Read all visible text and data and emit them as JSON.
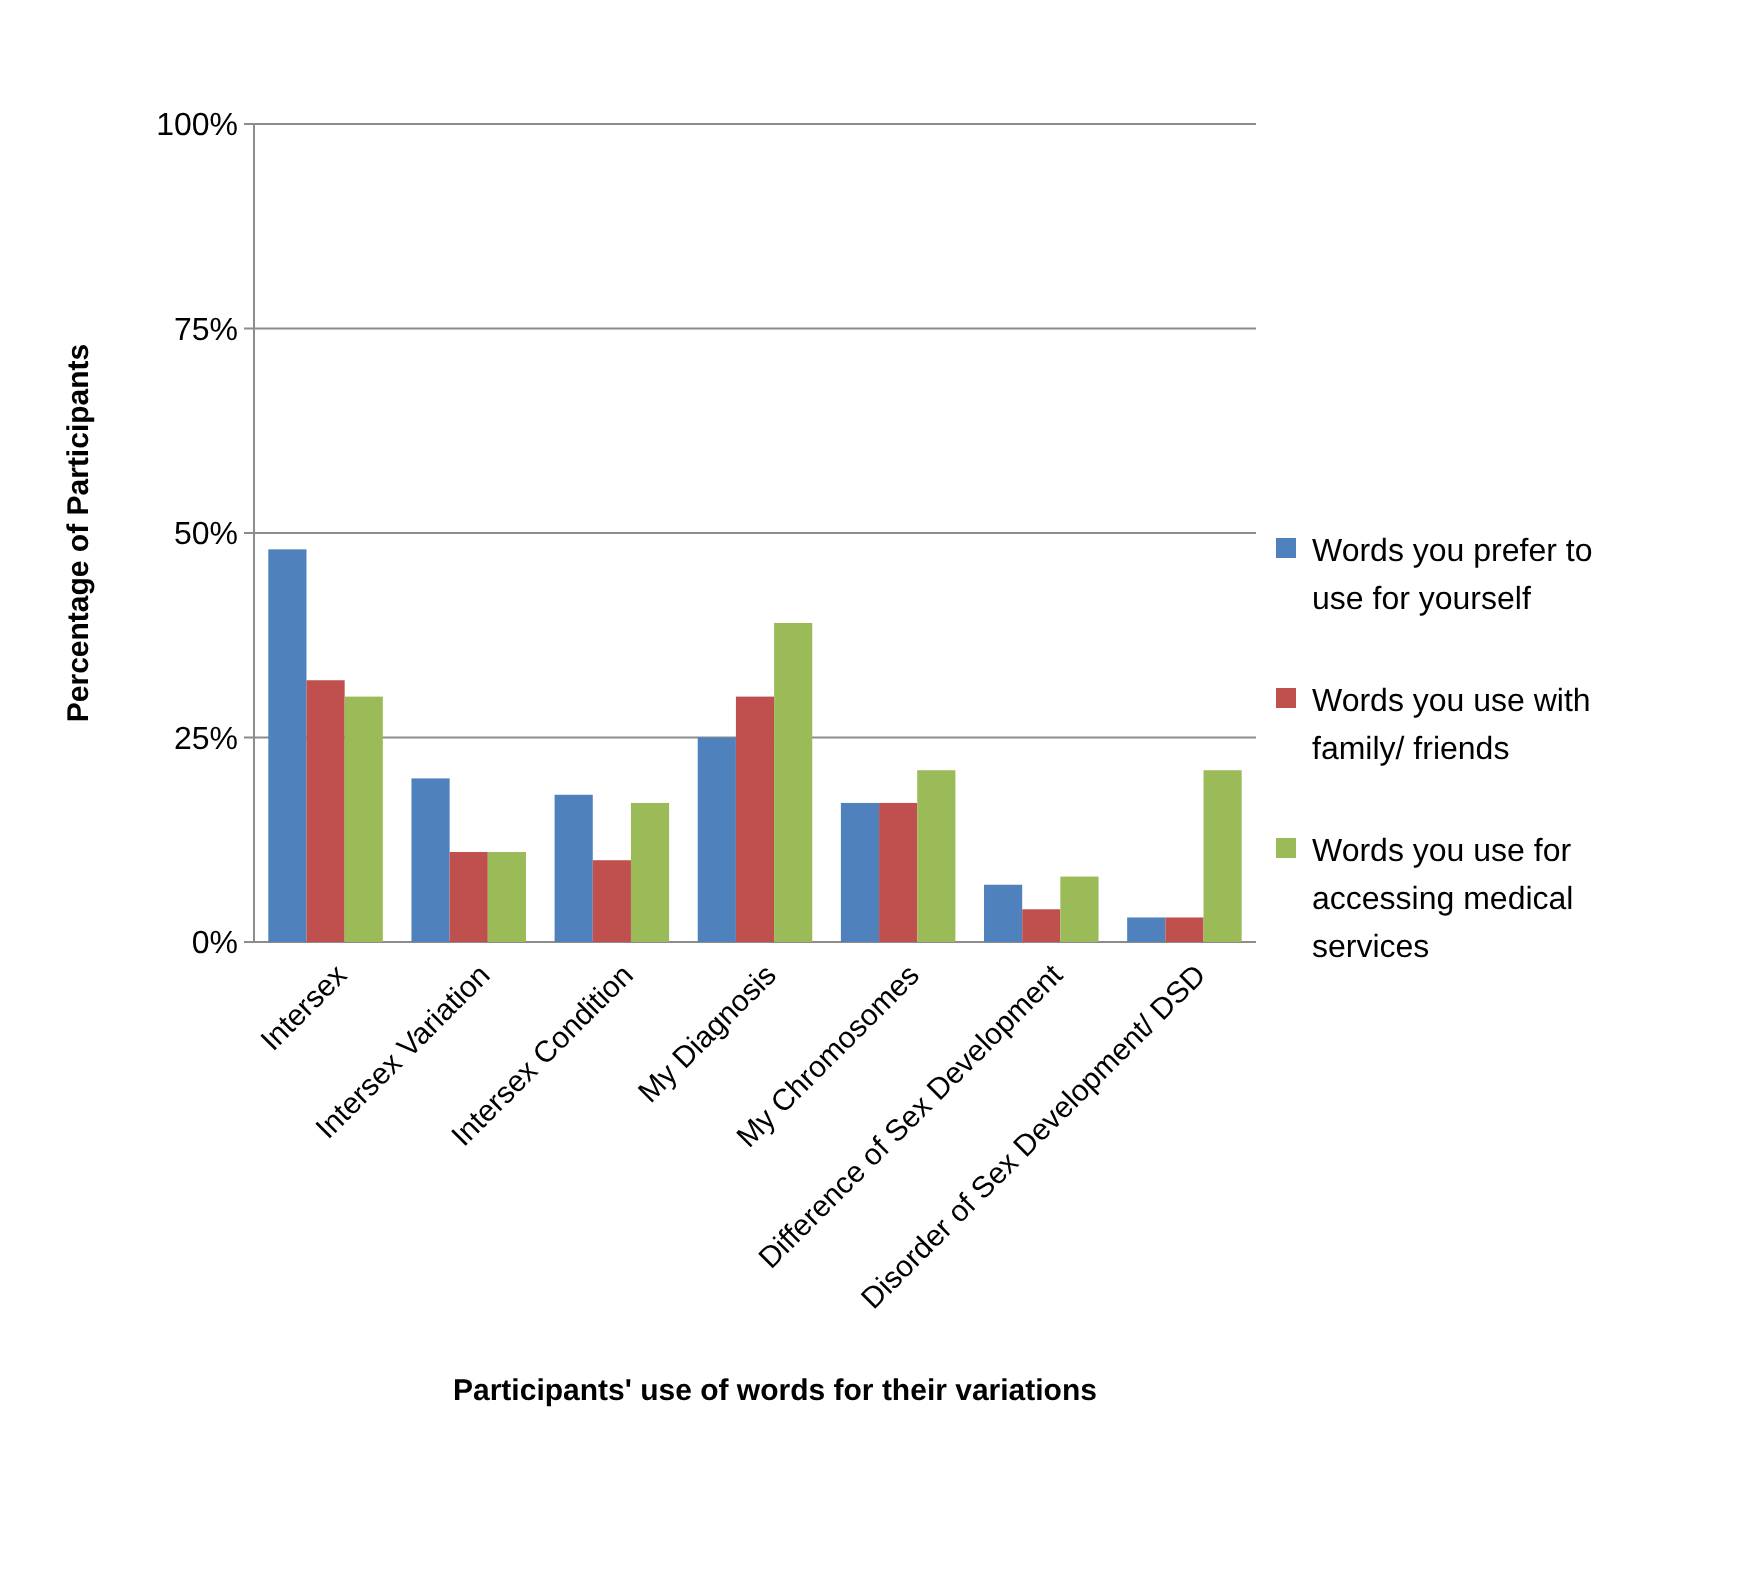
{
  "chart_data": {
    "type": "bar",
    "xlabel": "Participants' use of words for their variations",
    "ylabel": "Percentage of Participants",
    "categories": [
      "Intersex",
      "Intersex Variation",
      "Intersex Condition",
      "My Diagnosis",
      "My Chromosomes",
      "Difference of Sex Development",
      "Disorder of Sex Development/ DSD"
    ],
    "series": [
      {
        "name": "Words you prefer to use for yourself",
        "color": "#4f81bd",
        "values": [
          48,
          20,
          18,
          25,
          17,
          7,
          3
        ]
      },
      {
        "name": "Words you use with family/ friends",
        "color": "#c0504d",
        "values": [
          32,
          11,
          10,
          30,
          17,
          4,
          3
        ]
      },
      {
        "name": "Words you use for accessing medical services",
        "color": "#9bbb59",
        "values": [
          30,
          11,
          17,
          39,
          21,
          8,
          21
        ]
      }
    ],
    "ylim": [
      0,
      100
    ],
    "yticks": [
      {
        "value": 0,
        "label": "0%"
      },
      {
        "value": 25,
        "label": "25%"
      },
      {
        "value": 50,
        "label": "50%"
      },
      {
        "value": 75,
        "label": "75%"
      },
      {
        "value": 100,
        "label": "100%"
      }
    ],
    "grid": "y",
    "legend": "right"
  }
}
